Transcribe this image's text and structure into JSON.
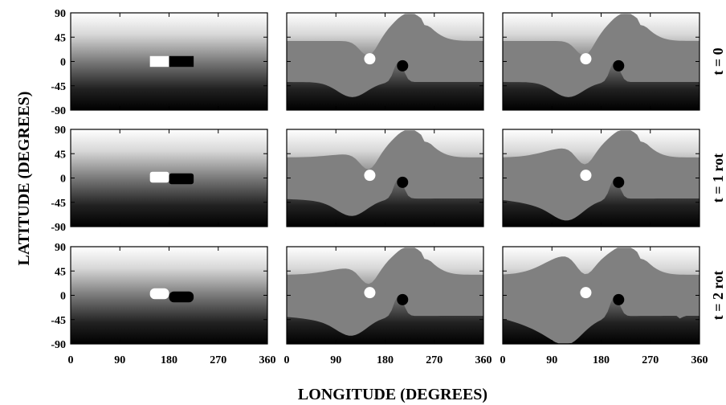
{
  "chart_data": {
    "type": "heatmap",
    "xlabel": "LONGITUDE   (DEGREES)",
    "ylabel": "LATITUDE   (DEGREES)",
    "xlim": [
      0,
      360
    ],
    "ylim": [
      -90,
      90
    ],
    "xticks": [
      0,
      90,
      180,
      270,
      360
    ],
    "yticks": [
      90,
      45,
      0,
      -45,
      -90
    ],
    "x_tick_labels": [
      "0",
      "90",
      "180",
      "270",
      "360"
    ],
    "y_tick_labels": [
      "90",
      "45",
      "0",
      "-45",
      "-90"
    ],
    "rows": [
      "t = 0",
      "t = 1 rot",
      "t = 2 rot"
    ],
    "columns": 3,
    "colors": {
      "north_pole": "#ffffff",
      "south_pole": "#000000",
      "uniform_region": "#808080",
      "positive_bipole": "#ffffff",
      "negative_bipole": "#000000"
    },
    "bipole": {
      "positive_lon_range": [
        145,
        180
      ],
      "negative_lon_range": [
        180,
        225
      ],
      "lat_range": [
        -10,
        10
      ],
      "tilt_growth_per_rot_deg": 3
    },
    "flux_spots": [
      {
        "polarity": "positive",
        "lon": 152,
        "lat": 5
      },
      {
        "polarity": "negative",
        "lon": 212,
        "lat": -8
      }
    ]
  }
}
